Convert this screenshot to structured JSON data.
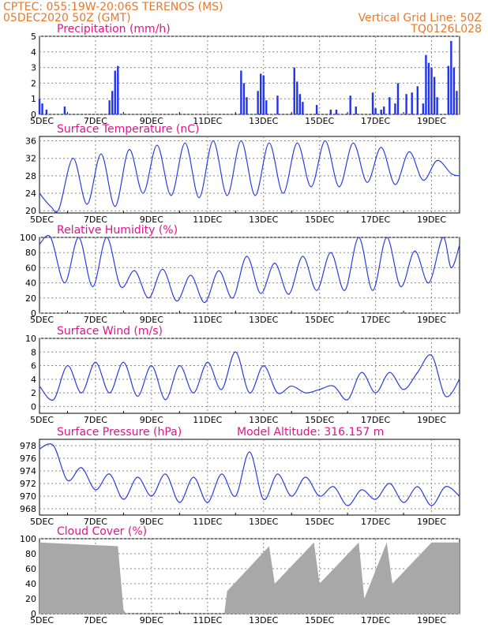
{
  "header": {
    "line1": "CPTEC:   055:19W-20:06S   TERENOS (MS)",
    "line2": "05DEC2020 50Z (GMT)",
    "right1": "Vertical Grid Line: 50Z",
    "right2": "TQ0126L028"
  },
  "x_tick_labels": [
    "5DEC",
    "7DEC",
    "9DEC",
    "11DEC",
    "13DEC",
    "15DEC",
    "17DEC",
    "19DEC"
  ],
  "colors": {
    "line": "#2a3ee0",
    "bar": "#2233ee",
    "cloud": "#a8a8a8",
    "header": "#e8792a",
    "title": "#e0148c"
  },
  "chart_data": [
    {
      "type": "bar",
      "title": "Precipitation (mm/h)",
      "ylim": [
        0,
        5
      ],
      "yticks": [
        0,
        1,
        2,
        3,
        4,
        5
      ],
      "x_days": [
        5.0,
        5.1,
        5.25,
        5.9,
        7.5,
        7.6,
        7.7,
        7.8,
        12.2,
        12.3,
        12.4,
        12.8,
        12.9,
        13.0,
        13.1,
        13.5,
        14.1,
        14.2,
        14.3,
        14.4,
        14.9,
        15.4,
        15.6,
        16.1,
        16.3,
        16.9,
        17.0,
        17.2,
        17.3,
        17.5,
        17.7,
        17.8,
        18.1,
        18.3,
        18.5,
        18.7,
        18.8,
        18.9,
        19.0,
        19.1,
        19.2,
        19.6,
        19.7,
        19.8,
        19.9
      ],
      "values": [
        1.0,
        0.7,
        0.3,
        0.5,
        0.9,
        1.5,
        2.8,
        3.1,
        2.8,
        2.0,
        1.1,
        1.5,
        2.6,
        2.5,
        0.9,
        1.2,
        3.0,
        2.1,
        1.3,
        0.8,
        0.6,
        0.3,
        0.3,
        1.2,
        0.5,
        1.4,
        0.4,
        0.3,
        0.5,
        1.1,
        0.7,
        2.0,
        1.3,
        1.4,
        1.8,
        0.7,
        3.8,
        3.3,
        3.0,
        2.4,
        1.1,
        3.1,
        4.7,
        3.0,
        1.5
      ]
    },
    {
      "type": "line",
      "title": "Surface Temperature (nC)",
      "ylim": [
        19.5,
        37
      ],
      "yticks": [
        20,
        24,
        28,
        32,
        36
      ],
      "x_days": [
        5.0,
        5.4,
        5.7,
        6.2,
        6.7,
        7.2,
        7.7,
        8.2,
        8.7,
        9.2,
        9.7,
        10.2,
        10.7,
        11.2,
        11.7,
        12.2,
        12.7,
        13.2,
        13.7,
        14.2,
        14.7,
        15.2,
        15.7,
        16.2,
        16.7,
        17.2,
        17.7,
        18.2,
        18.7,
        19.2,
        19.7,
        20.0
      ],
      "values": [
        24.0,
        21.0,
        20.5,
        32.0,
        21.5,
        33.0,
        21.0,
        34.0,
        24.0,
        35.0,
        23.5,
        35.5,
        23.0,
        36.0,
        23.5,
        36.0,
        23.5,
        35.5,
        24.0,
        35.5,
        25.5,
        36.0,
        25.5,
        35.5,
        26.5,
        34.5,
        26.0,
        33.5,
        27.0,
        31.5,
        28.5,
        28.0
      ]
    },
    {
      "type": "line",
      "title": "Relative Humidity (%)",
      "ylim": [
        0,
        100
      ],
      "yticks": [
        0,
        20,
        40,
        60,
        80,
        100
      ],
      "x_days": [
        5.0,
        5.4,
        5.9,
        6.4,
        6.9,
        7.4,
        7.9,
        8.4,
        8.9,
        9.4,
        9.9,
        10.4,
        10.9,
        11.4,
        11.9,
        12.4,
        12.9,
        13.4,
        13.9,
        14.4,
        14.9,
        15.4,
        15.9,
        16.4,
        16.9,
        17.4,
        17.9,
        18.4,
        18.9,
        19.4,
        19.7,
        20.0
      ],
      "values": [
        91.0,
        100.0,
        40.0,
        100.0,
        35.0,
        100.0,
        35.0,
        56.0,
        20.0,
        58.0,
        16.0,
        50.0,
        14.0,
        56.0,
        20.0,
        75.0,
        26.0,
        66.0,
        25.0,
        75.0,
        30.0,
        80.0,
        30.0,
        100.0,
        30.0,
        100.0,
        35.0,
        82.0,
        40.0,
        100.0,
        60.0,
        90.0
      ]
    },
    {
      "type": "line",
      "title": "Surface Wind (m/s)",
      "ylim": [
        -1,
        10
      ],
      "yticks": [
        0,
        2,
        4,
        6,
        8,
        10
      ],
      "x_days": [
        5.0,
        5.5,
        6.0,
        6.5,
        7.0,
        7.5,
        8.0,
        8.5,
        9.0,
        9.5,
        10.0,
        10.5,
        11.0,
        11.5,
        12.0,
        12.5,
        13.0,
        13.5,
        14.0,
        14.5,
        15.0,
        15.5,
        16.0,
        16.5,
        17.0,
        17.5,
        18.0,
        18.5,
        19.0,
        19.5,
        20.0
      ],
      "values": [
        3.0,
        1.0,
        6.0,
        2.0,
        6.5,
        2.0,
        6.5,
        1.5,
        6.0,
        1.0,
        6.0,
        2.0,
        6.5,
        2.5,
        8.0,
        2.0,
        6.0,
        2.0,
        3.0,
        2.0,
        2.5,
        3.0,
        1.0,
        5.0,
        2.0,
        5.0,
        2.5,
        5.0,
        7.5,
        1.5,
        4.0
      ]
    },
    {
      "type": "line",
      "title": "Surface Pressure (hPa)",
      "annotation": "Model Altitude: 316.157 m",
      "ylim": [
        967,
        979
      ],
      "yticks": [
        968,
        970,
        972,
        974,
        976,
        978
      ],
      "x_days": [
        5.0,
        5.5,
        6.0,
        6.5,
        7.0,
        7.5,
        8.0,
        8.5,
        9.0,
        9.5,
        10.0,
        10.5,
        11.0,
        11.5,
        12.0,
        12.5,
        13.0,
        13.5,
        14.0,
        14.5,
        15.0,
        15.5,
        16.0,
        16.5,
        17.0,
        17.5,
        18.0,
        18.5,
        19.0,
        19.5,
        20.0
      ],
      "values": [
        977.5,
        978.0,
        972.5,
        974.5,
        971.0,
        973.5,
        969.5,
        973.0,
        970.0,
        973.5,
        969.0,
        973.0,
        969.0,
        973.5,
        970.0,
        977.0,
        969.5,
        973.5,
        970.0,
        973.0,
        970.0,
        971.5,
        968.5,
        971.0,
        969.5,
        972.0,
        969.0,
        971.5,
        968.5,
        971.5,
        970.0
      ]
    },
    {
      "type": "area",
      "title": "Cloud Cover (%)",
      "ylim": [
        0,
        100
      ],
      "yticks": [
        0,
        20,
        40,
        60,
        80,
        100
      ],
      "x_days": [
        5.0,
        7.8,
        8.0,
        8.1,
        11.6,
        11.7,
        13.2,
        13.4,
        14.8,
        15.0,
        16.4,
        16.6,
        17.4,
        17.6,
        19.0,
        20.0
      ],
      "values": [
        95.0,
        90.0,
        5.0,
        0.0,
        0.0,
        30.0,
        90.0,
        40.0,
        95.0,
        40.0,
        95.0,
        20.0,
        95.0,
        40.0,
        95.0,
        95.0
      ]
    }
  ]
}
